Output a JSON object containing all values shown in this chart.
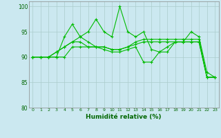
{
  "xlabel": "Humidité relative (%)",
  "background_color": "#cbe8f0",
  "grid_color": "#aacccc",
  "line_color": "#00bb00",
  "ylim": [
    80,
    101
  ],
  "xlim": [
    -0.5,
    23.5
  ],
  "yticks": [
    80,
    85,
    90,
    95,
    100
  ],
  "xticks": [
    0,
    1,
    2,
    3,
    4,
    5,
    6,
    7,
    8,
    9,
    10,
    11,
    12,
    13,
    14,
    15,
    16,
    17,
    18,
    19,
    20,
    21,
    22,
    23
  ],
  "series": [
    [
      90,
      90,
      90,
      90,
      94,
      96.5,
      94,
      95,
      97.5,
      95,
      94,
      100,
      95,
      94,
      95,
      91.5,
      91,
      91,
      93,
      93,
      95,
      94,
      87,
      86
    ],
    [
      90,
      90,
      90,
      90,
      90,
      92,
      92,
      92,
      92,
      91.5,
      91,
      91,
      91.5,
      92,
      89,
      89,
      91,
      92,
      93,
      93,
      93,
      93,
      86,
      86
    ],
    [
      90,
      90,
      90,
      91,
      92,
      93,
      93,
      92,
      92,
      92,
      91.5,
      91.5,
      92,
      92.5,
      93,
      93,
      93,
      93,
      93,
      93,
      93,
      93,
      86,
      86
    ],
    [
      90,
      90,
      90,
      91,
      92,
      93,
      94,
      93,
      92,
      92,
      91.5,
      91.5,
      92,
      93,
      93.5,
      93.5,
      93.5,
      93.5,
      93.5,
      93.5,
      93.5,
      93.5,
      86,
      86
    ]
  ]
}
